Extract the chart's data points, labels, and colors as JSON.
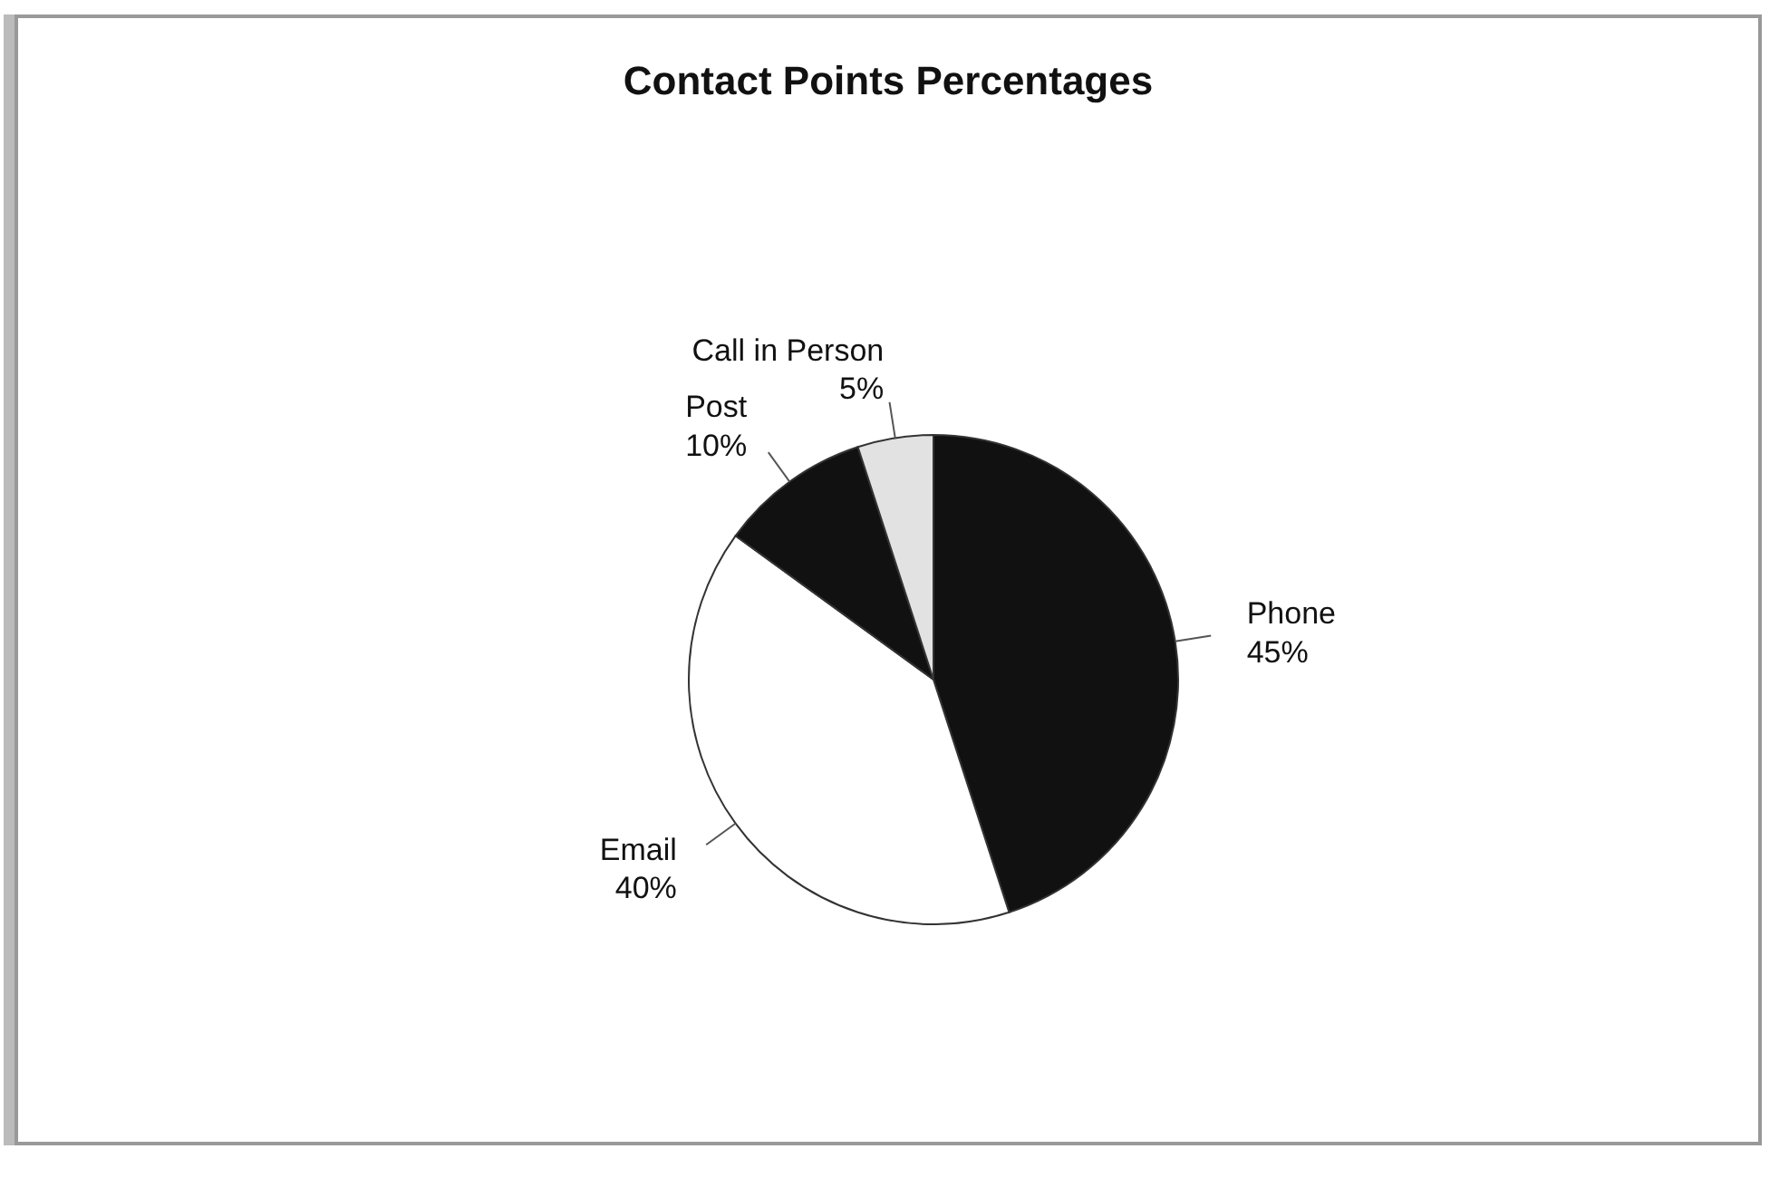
{
  "chart_data": {
    "type": "pie",
    "title": "Contact Points Percentages",
    "categories": [
      "Phone",
      "Email",
      "Post",
      "Call in Person"
    ],
    "values": [
      45,
      40,
      10,
      5
    ],
    "colors": [
      "#111111",
      "#ffffff",
      "#111111",
      "#e2e2e2"
    ],
    "value_labels": [
      "45%",
      "40%",
      "10%",
      "5%"
    ],
    "legend": false
  }
}
